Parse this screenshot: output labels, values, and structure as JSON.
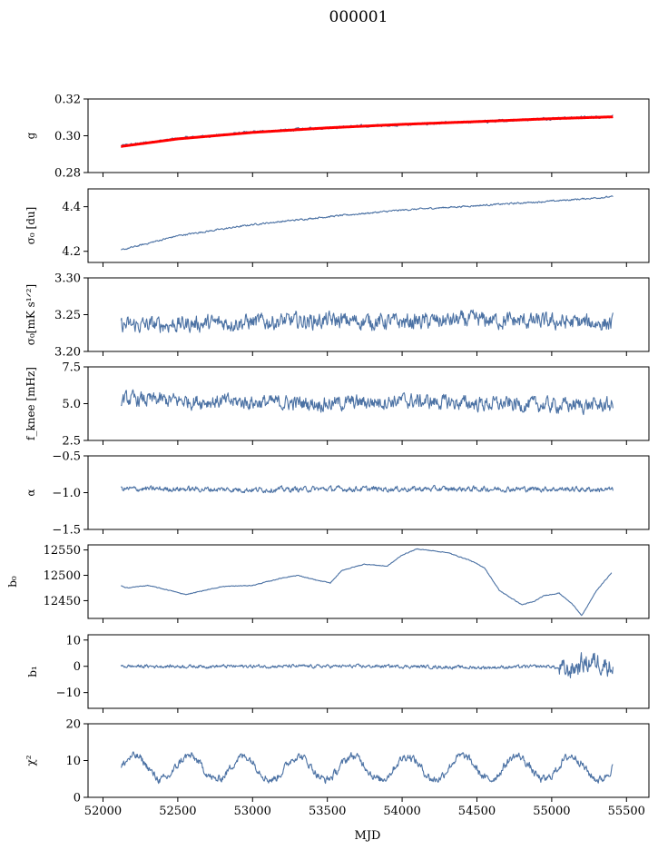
{
  "title": "000001",
  "chart_data": {
    "type": "line",
    "xlabel": "MJD",
    "xlim": [
      51900,
      55650
    ],
    "xticks": [
      52000,
      52500,
      53000,
      53500,
      54000,
      54500,
      55000,
      55500
    ],
    "x_start": 52120,
    "x_end": 55410,
    "line_color": "#4c72a4",
    "fit_color": "#ff0000",
    "panels": [
      {
        "id": "g",
        "ylabel": "g",
        "ylim": [
          0.28,
          0.32
        ],
        "yticks": [
          "0.28",
          "0.30",
          "0.32"
        ],
        "ytick_values": [
          0.28,
          0.3,
          0.32
        ],
        "series": [
          {
            "x": [
              52120,
              52500,
              53000,
              53500,
              54000,
              54500,
              55000,
              55410
            ],
            "y": [
              0.2945,
              0.2985,
              0.302,
              0.3045,
              0.306,
              0.3075,
              0.3095,
              0.3105
            ],
            "noise": 0.0008
          },
          {
            "x": [
              52120,
              52500,
              53000,
              53500,
              54000,
              54500,
              55000,
              55410
            ],
            "y": [
              0.2942,
              0.2983,
              0.3018,
              0.3043,
              0.3062,
              0.3077,
              0.3093,
              0.3103
            ],
            "fit": true
          }
        ]
      },
      {
        "id": "sigma0-du",
        "ylabel": "σ₀ [du]",
        "ylim": [
          4.15,
          4.48
        ],
        "yticks": [
          "4.2",
          "4.4"
        ],
        "ytick_values": [
          4.2,
          4.4
        ],
        "series": [
          {
            "x": [
              52120,
              52500,
              53000,
              53500,
              54000,
              54500,
              55000,
              55410
            ],
            "y": [
              4.205,
              4.27,
              4.32,
              4.355,
              4.385,
              4.405,
              4.425,
              4.445
            ],
            "noise": 0.004
          }
        ]
      },
      {
        "id": "sigma0-mk",
        "ylabel": "σ₀[mK s¹ᐟ²]",
        "ylim": [
          3.2,
          3.3
        ],
        "yticks": [
          "3.20",
          "3.25",
          "3.30"
        ],
        "ytick_values": [
          3.2,
          3.25,
          3.3
        ],
        "series": [
          {
            "x": [
              52120,
              52500,
              53000,
              53500,
              54000,
              54500,
              55000,
              55410
            ],
            "y": [
              3.235,
              3.237,
              3.24,
              3.242,
              3.24,
              3.243,
              3.24,
              3.238
            ],
            "noise": 0.012
          }
        ]
      },
      {
        "id": "fknee",
        "ylabel": "f_knee [mHz]",
        "ylim": [
          2.5,
          7.5
        ],
        "yticks": [
          "2.5",
          "5.0",
          "7.5"
        ],
        "ytick_values": [
          2.5,
          5.0,
          7.5
        ],
        "series": [
          {
            "x": [
              52120,
              52500,
              53000,
              53500,
              54000,
              54500,
              55000,
              55410
            ],
            "y": [
              5.3,
              5.2,
              5.1,
              5.0,
              5.2,
              5.0,
              4.9,
              4.9
            ],
            "noise": 0.55
          }
        ]
      },
      {
        "id": "alpha",
        "ylabel": "α",
        "ylim": [
          -1.5,
          -0.5
        ],
        "yticks": [
          "−1.5",
          "−1.0",
          "−0.5"
        ],
        "ytick_values": [
          -1.5,
          -1.0,
          -0.5
        ],
        "series": [
          {
            "x": [
              52120,
              52500,
              53000,
              53500,
              54000,
              54500,
              55000,
              55410
            ],
            "y": [
              -0.95,
              -0.95,
              -0.96,
              -0.95,
              -0.95,
              -0.95,
              -0.95,
              -0.96
            ],
            "noise": 0.04
          }
        ]
      },
      {
        "id": "b0",
        "ylabel": "b₀",
        "ylim": [
          12415,
          12560
        ],
        "yticks": [
          "12450",
          "12500",
          "12550"
        ],
        "ytick_values": [
          12450,
          12500,
          12550
        ],
        "series": [
          {
            "x": [
              52120,
              52150,
              52300,
              52450,
              52550,
              52800,
              53000,
              53200,
              53300,
              53430,
              53520,
              53600,
              53750,
              53900,
              54000,
              54100,
              54300,
              54450,
              54550,
              54650,
              54800,
              54880,
              54950,
              55050,
              55150,
              55200,
              55250,
              55300,
              55400
            ],
            "y": [
              12480,
              12475,
              12480,
              12470,
              12462,
              12478,
              12480,
              12495,
              12500,
              12490,
              12485,
              12510,
              12522,
              12518,
              12540,
              12552,
              12545,
              12530,
              12515,
              12470,
              12442,
              12448,
              12460,
              12465,
              12440,
              12420,
              12445,
              12470,
              12505
            ],
            "noise": 0.8
          }
        ]
      },
      {
        "id": "b1",
        "ylabel": "b₁",
        "ylim": [
          -16,
          12
        ],
        "yticks": [
          "−10",
          "0",
          "10"
        ],
        "ytick_values": [
          -10,
          0,
          10
        ],
        "series": [
          {
            "x": [
              52120,
              52500,
              53000,
              53500,
              54000,
              54500,
              55000,
              55100,
              55200,
              55300,
              55410
            ],
            "y": [
              0,
              0,
              0,
              0,
              0,
              -0.5,
              0,
              -2,
              1,
              2,
              0
            ],
            "noise": 0.7
          }
        ]
      },
      {
        "id": "chi2",
        "ylabel": "χ²",
        "ylim": [
          0,
          20
        ],
        "yticks": [
          "0",
          "10",
          "20"
        ],
        "ytick_values": [
          0,
          10,
          20
        ],
        "series": [
          {
            "x": [
              52120,
              55410
            ],
            "y": [
              8,
              8
            ],
            "noise": 1.2,
            "periodic_amp": 3.2,
            "period": 365
          }
        ]
      }
    ]
  }
}
